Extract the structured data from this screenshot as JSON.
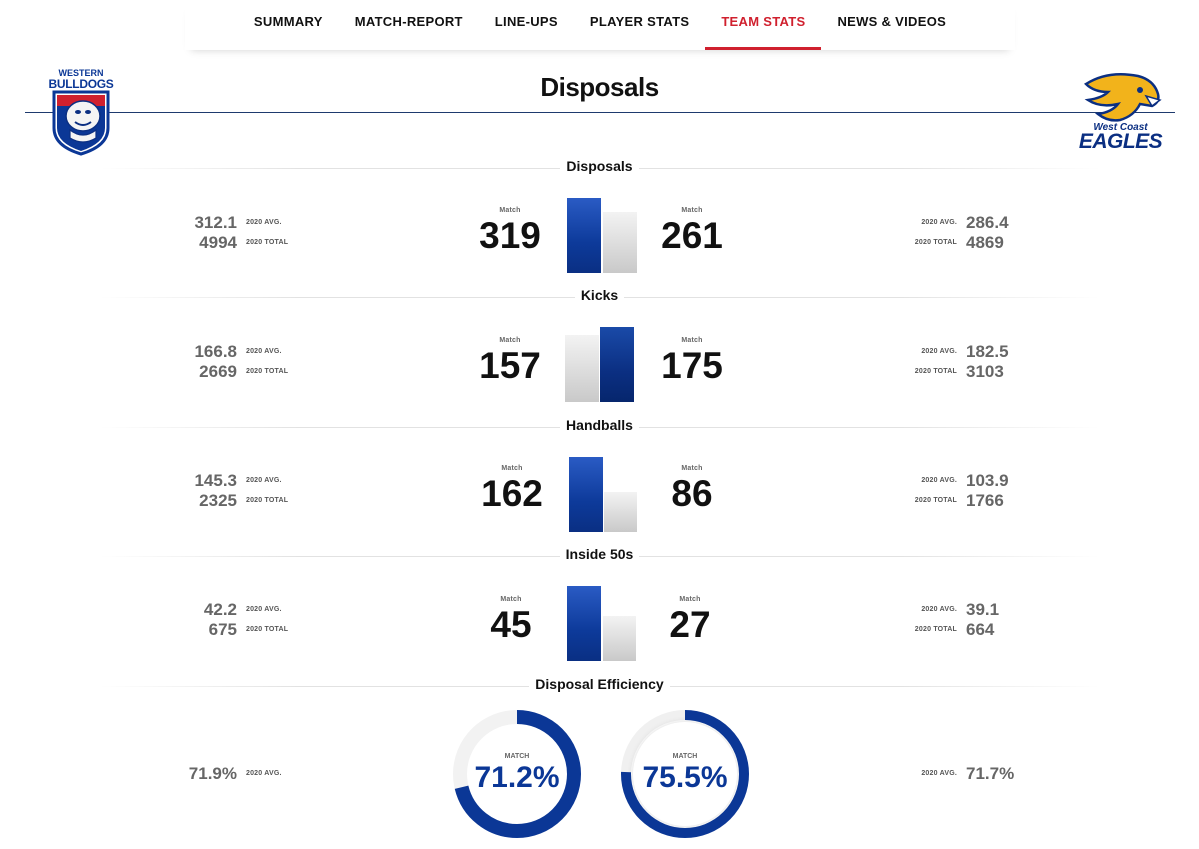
{
  "nav": {
    "tabs": [
      {
        "label": "SUMMARY",
        "active": false
      },
      {
        "label": "MATCH-REPORT",
        "active": false
      },
      {
        "label": "LINE-UPS",
        "active": false
      },
      {
        "label": "PLAYER STATS",
        "active": false
      },
      {
        "label": "TEAM STATS",
        "active": true
      },
      {
        "label": "NEWS & VIDEOS",
        "active": false
      }
    ]
  },
  "page": {
    "title": "Disposals"
  },
  "teams": {
    "home": {
      "logo_line1": "WESTERN",
      "logo_line2": "BULLDOGS",
      "colors": {
        "primary": "#0b3796",
        "secondary": "#d0202e"
      }
    },
    "away": {
      "logo_line1": "West Coast",
      "logo_line2": "EAGLES",
      "colors": {
        "primary": "#0b2f82",
        "secondary": "#f2b31b"
      }
    }
  },
  "labels": {
    "match": "Match",
    "avg": "2020 AVG.",
    "total": "2020 TOTAL",
    "match_upper": "MATCH"
  },
  "stats": [
    {
      "name": "Disposals",
      "home": {
        "match": "319",
        "avg": "312.1",
        "total": "4994"
      },
      "away": {
        "match": "261",
        "avg": "286.4",
        "total": "4869"
      },
      "home_value": 319,
      "away_value": 261,
      "leader": "home"
    },
    {
      "name": "Kicks",
      "home": {
        "match": "157",
        "avg": "166.8",
        "total": "2669"
      },
      "away": {
        "match": "175",
        "avg": "182.5",
        "total": "3103"
      },
      "home_value": 157,
      "away_value": 175,
      "leader": "away"
    },
    {
      "name": "Handballs",
      "home": {
        "match": "162",
        "avg": "145.3",
        "total": "2325"
      },
      "away": {
        "match": "86",
        "avg": "103.9",
        "total": "1766"
      },
      "home_value": 162,
      "away_value": 86,
      "leader": "home"
    },
    {
      "name": "Inside 50s",
      "home": {
        "match": "45",
        "avg": "42.2",
        "total": "675"
      },
      "away": {
        "match": "27",
        "avg": "39.1",
        "total": "664"
      },
      "home_value": 45,
      "away_value": 27,
      "leader": "home"
    }
  ],
  "efficiency": {
    "name": "Disposal Efficiency",
    "home": {
      "match": "71.2%",
      "avg": "71.9%",
      "value": 71.2
    },
    "away": {
      "match": "75.5%",
      "avg": "71.7%",
      "value": 75.5
    }
  }
}
